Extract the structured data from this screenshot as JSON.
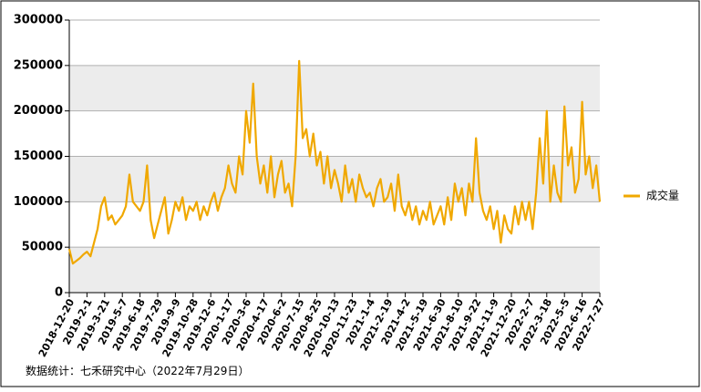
{
  "chart_data": {
    "type": "line",
    "categories": [
      "2018-12-20",
      null,
      null,
      null,
      null,
      "2019-2-1",
      null,
      null,
      null,
      null,
      "2019-3-21",
      null,
      null,
      null,
      null,
      "2019-5-7",
      null,
      null,
      null,
      null,
      "2019-6-18",
      null,
      null,
      null,
      null,
      "2019-7-29",
      null,
      null,
      null,
      null,
      "2019-9-9",
      null,
      null,
      null,
      null,
      "2019-10-28",
      null,
      null,
      null,
      null,
      "2019-12-6",
      null,
      null,
      null,
      null,
      "2020-1-17",
      null,
      null,
      null,
      null,
      "2020-3-6",
      null,
      null,
      null,
      null,
      "2020-4-17",
      null,
      null,
      null,
      null,
      "2020-6-2",
      null,
      null,
      null,
      null,
      "2020-7-15",
      null,
      null,
      null,
      null,
      "2020-8-25",
      null,
      null,
      null,
      null,
      "2020-10-13",
      null,
      null,
      null,
      null,
      "2020-11-23",
      null,
      null,
      null,
      null,
      "2021-1-4",
      null,
      null,
      null,
      null,
      "2021-2-19",
      null,
      null,
      null,
      null,
      "2021-4-2",
      null,
      null,
      null,
      null,
      "2021-5-19",
      null,
      null,
      null,
      null,
      "2021-6-30",
      null,
      null,
      null,
      null,
      "2021-8-10",
      null,
      null,
      null,
      null,
      "2021-9-22",
      null,
      null,
      null,
      null,
      "2021-11-9",
      null,
      null,
      null,
      null,
      "2021-12-20",
      null,
      null,
      null,
      null,
      "2022-2-7",
      null,
      null,
      null,
      null,
      "2022-3-18",
      null,
      null,
      null,
      null,
      "2022-5-5",
      null,
      null,
      null,
      null,
      "2022-6-16",
      null,
      null,
      null,
      null,
      "2022-7-27"
    ],
    "series": [
      {
        "name": "成交量",
        "color": "#f0a800",
        "values": [
          48000,
          32000,
          35000,
          38000,
          42000,
          45000,
          40000,
          55000,
          70000,
          95000,
          105000,
          80000,
          85000,
          75000,
          80000,
          85000,
          95000,
          130000,
          100000,
          95000,
          90000,
          100000,
          140000,
          80000,
          60000,
          75000,
          90000,
          105000,
          65000,
          80000,
          100000,
          90000,
          105000,
          80000,
          95000,
          90000,
          100000,
          80000,
          95000,
          85000,
          100000,
          110000,
          90000,
          105000,
          115000,
          140000,
          120000,
          110000,
          150000,
          130000,
          200000,
          165000,
          230000,
          150000,
          120000,
          140000,
          110000,
          150000,
          105000,
          130000,
          145000,
          110000,
          120000,
          95000,
          150000,
          255000,
          170000,
          180000,
          150000,
          175000,
          140000,
          155000,
          120000,
          150000,
          115000,
          135000,
          120000,
          100000,
          140000,
          110000,
          125000,
          100000,
          130000,
          115000,
          105000,
          110000,
          95000,
          115000,
          125000,
          100000,
          105000,
          120000,
          90000,
          130000,
          95000,
          85000,
          100000,
          80000,
          95000,
          75000,
          90000,
          80000,
          100000,
          75000,
          85000,
          95000,
          75000,
          105000,
          80000,
          120000,
          100000,
          115000,
          85000,
          120000,
          100000,
          170000,
          110000,
          90000,
          80000,
          95000,
          70000,
          90000,
          55000,
          85000,
          70000,
          65000,
          95000,
          75000,
          100000,
          80000,
          100000,
          70000,
          110000,
          170000,
          120000,
          200000,
          100000,
          140000,
          110000,
          100000,
          205000,
          140000,
          160000,
          110000,
          125000,
          210000,
          130000,
          150000,
          115000,
          140000,
          100000
        ]
      }
    ],
    "ylim": [
      0,
      300000
    ],
    "yticks": [
      0,
      50000,
      100000,
      150000,
      200000,
      250000,
      300000
    ],
    "grid": true,
    "legend": "right",
    "source": "数据统计：七禾研究中心（2022年7月29日）"
  }
}
